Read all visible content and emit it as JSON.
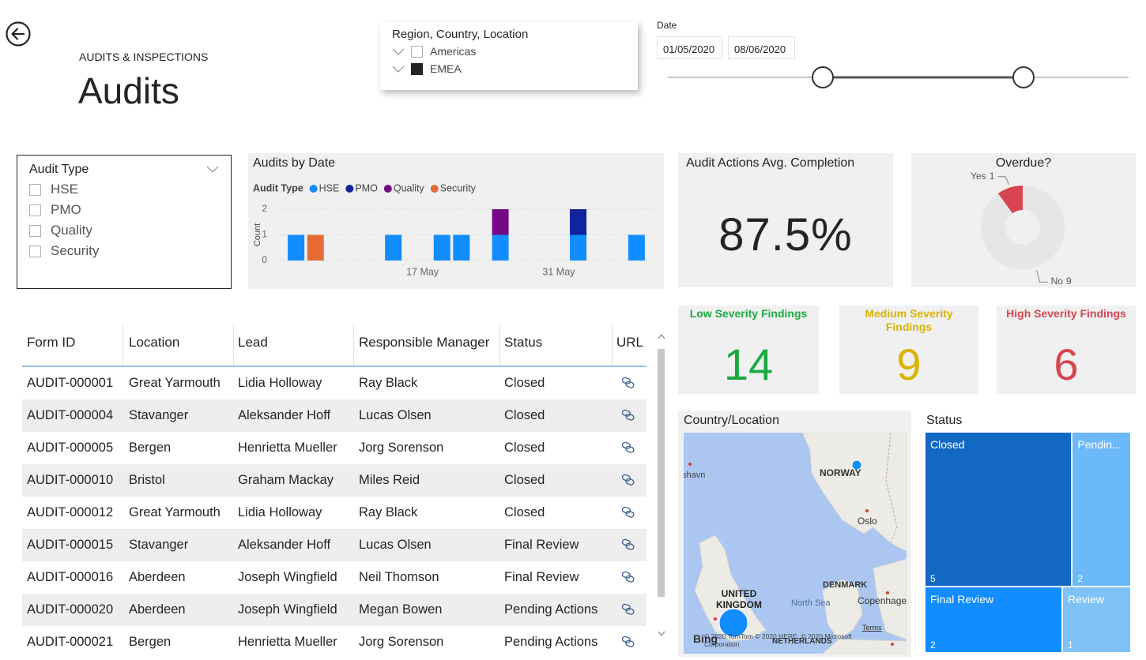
{
  "header": {
    "section": "AUDITS & INSPECTIONS",
    "title": "Audits"
  },
  "region_filter": {
    "title": "Region, Country, Location",
    "options": [
      "Americas",
      "EMEA"
    ],
    "checked": [
      false,
      true
    ]
  },
  "date_filter": {
    "label": "Date",
    "start": "01/05/2020",
    "end": "08/06/2020"
  },
  "audit_type_filter": {
    "title": "Audit Type",
    "options": [
      "HSE",
      "PMO",
      "Quality",
      "Security"
    ],
    "checked": [
      false,
      false,
      false,
      false
    ]
  },
  "chart_data": [
    {
      "type": "bar",
      "stacked": true,
      "title": "Audits by Date",
      "legend_title": "Audit Type",
      "y_label": "Count",
      "x": [
        "4 May",
        "6 May",
        "14 May",
        "19 May",
        "21 May",
        "25 May",
        "2 Jun",
        "8 Jun"
      ],
      "series": [
        {
          "name": "HSE",
          "color": "#118DFF",
          "values": [
            1,
            null,
            1,
            1,
            1,
            1,
            1,
            1
          ]
        },
        {
          "name": "PMO",
          "color": "#12239E",
          "values": [
            null,
            null,
            null,
            null,
            null,
            null,
            1,
            null
          ]
        },
        {
          "name": "Quality",
          "color": "#750985",
          "values": [
            null,
            null,
            null,
            null,
            null,
            1,
            null,
            null
          ]
        },
        {
          "name": "Security",
          "color": "#E66C37",
          "values": [
            null,
            1,
            null,
            null,
            null,
            null,
            null,
            null
          ]
        }
      ],
      "xlim": [
        "2 May",
        "10 Jun"
      ],
      "xticks": [
        "17 May",
        "31 May"
      ],
      "ylim": [
        0,
        2
      ],
      "yticks": [
        0,
        1,
        2
      ],
      "grid": true
    },
    {
      "type": "pie",
      "donut": true,
      "title": "Overdue?",
      "categories": [
        "Yes",
        "No"
      ],
      "values": [
        1,
        9
      ],
      "colors": [
        "#D64550",
        "#E6E6E6"
      ]
    },
    {
      "type": "treemap",
      "title": "Status",
      "categories": [
        "Closed",
        "Pendin...",
        "Final Review",
        "Review"
      ],
      "values": [
        5,
        2,
        2,
        1
      ],
      "colors": [
        "#1268C3",
        "#6CB9FA",
        "#118DFF",
        "#7EC2F8"
      ]
    }
  ],
  "kpi": {
    "title": "Audit Actions Avg. Completion",
    "value": "87.5%"
  },
  "severity_cards": [
    {
      "title": "Low Severity Findings",
      "value": 14,
      "color": "#1AAB40"
    },
    {
      "title": "Medium Severity Findings",
      "value": 9,
      "color": "#D9B300"
    },
    {
      "title": "High Severity Findings",
      "value": 6,
      "color": "#D64550"
    }
  ],
  "map": {
    "title": "Country/Location",
    "labels": [
      "shavn",
      "NORWAY",
      "Oslo",
      "UNITED KINGDOM",
      "DENMARK",
      "North Sea",
      "Copenhagen",
      "NETHERLANDS",
      "Terms",
      "© 2020 TomTom © 2020 HERE, © 2020 Microsoft Corporation",
      "Bing"
    ]
  },
  "table": {
    "columns": [
      "Form ID",
      "Location",
      "Lead",
      "Responsible Manager",
      "Status",
      "URL"
    ],
    "rows": [
      [
        "AUDIT-000001",
        "Great Yarmouth",
        "Lidia Holloway",
        "Ray Black",
        "Closed"
      ],
      [
        "AUDIT-000004",
        "Stavanger",
        "Aleksander Hoff",
        "Lucas Olsen",
        "Closed"
      ],
      [
        "AUDIT-000005",
        "Bergen",
        "Henrietta Mueller",
        "Jorg Sorenson",
        "Closed"
      ],
      [
        "AUDIT-000010",
        "Bristol",
        "Graham Mackay",
        "Miles Reid",
        "Closed"
      ],
      [
        "AUDIT-000012",
        "Great Yarmouth",
        "Lidia Holloway",
        "Ray Black",
        "Closed"
      ],
      [
        "AUDIT-000015",
        "Stavanger",
        "Aleksander Hoff",
        "Lucas Olsen",
        "Final Review"
      ],
      [
        "AUDIT-000016",
        "Aberdeen",
        "Joseph Wingfield",
        "Neil Thomson",
        "Final Review"
      ],
      [
        "AUDIT-000020",
        "Aberdeen",
        "Joseph Wingfield",
        "Megan Bowen",
        "Pending Actions"
      ],
      [
        "AUDIT-000021",
        "Bergen",
        "Henrietta Mueller",
        "Jorg Sorenson",
        "Pending Actions"
      ]
    ]
  }
}
